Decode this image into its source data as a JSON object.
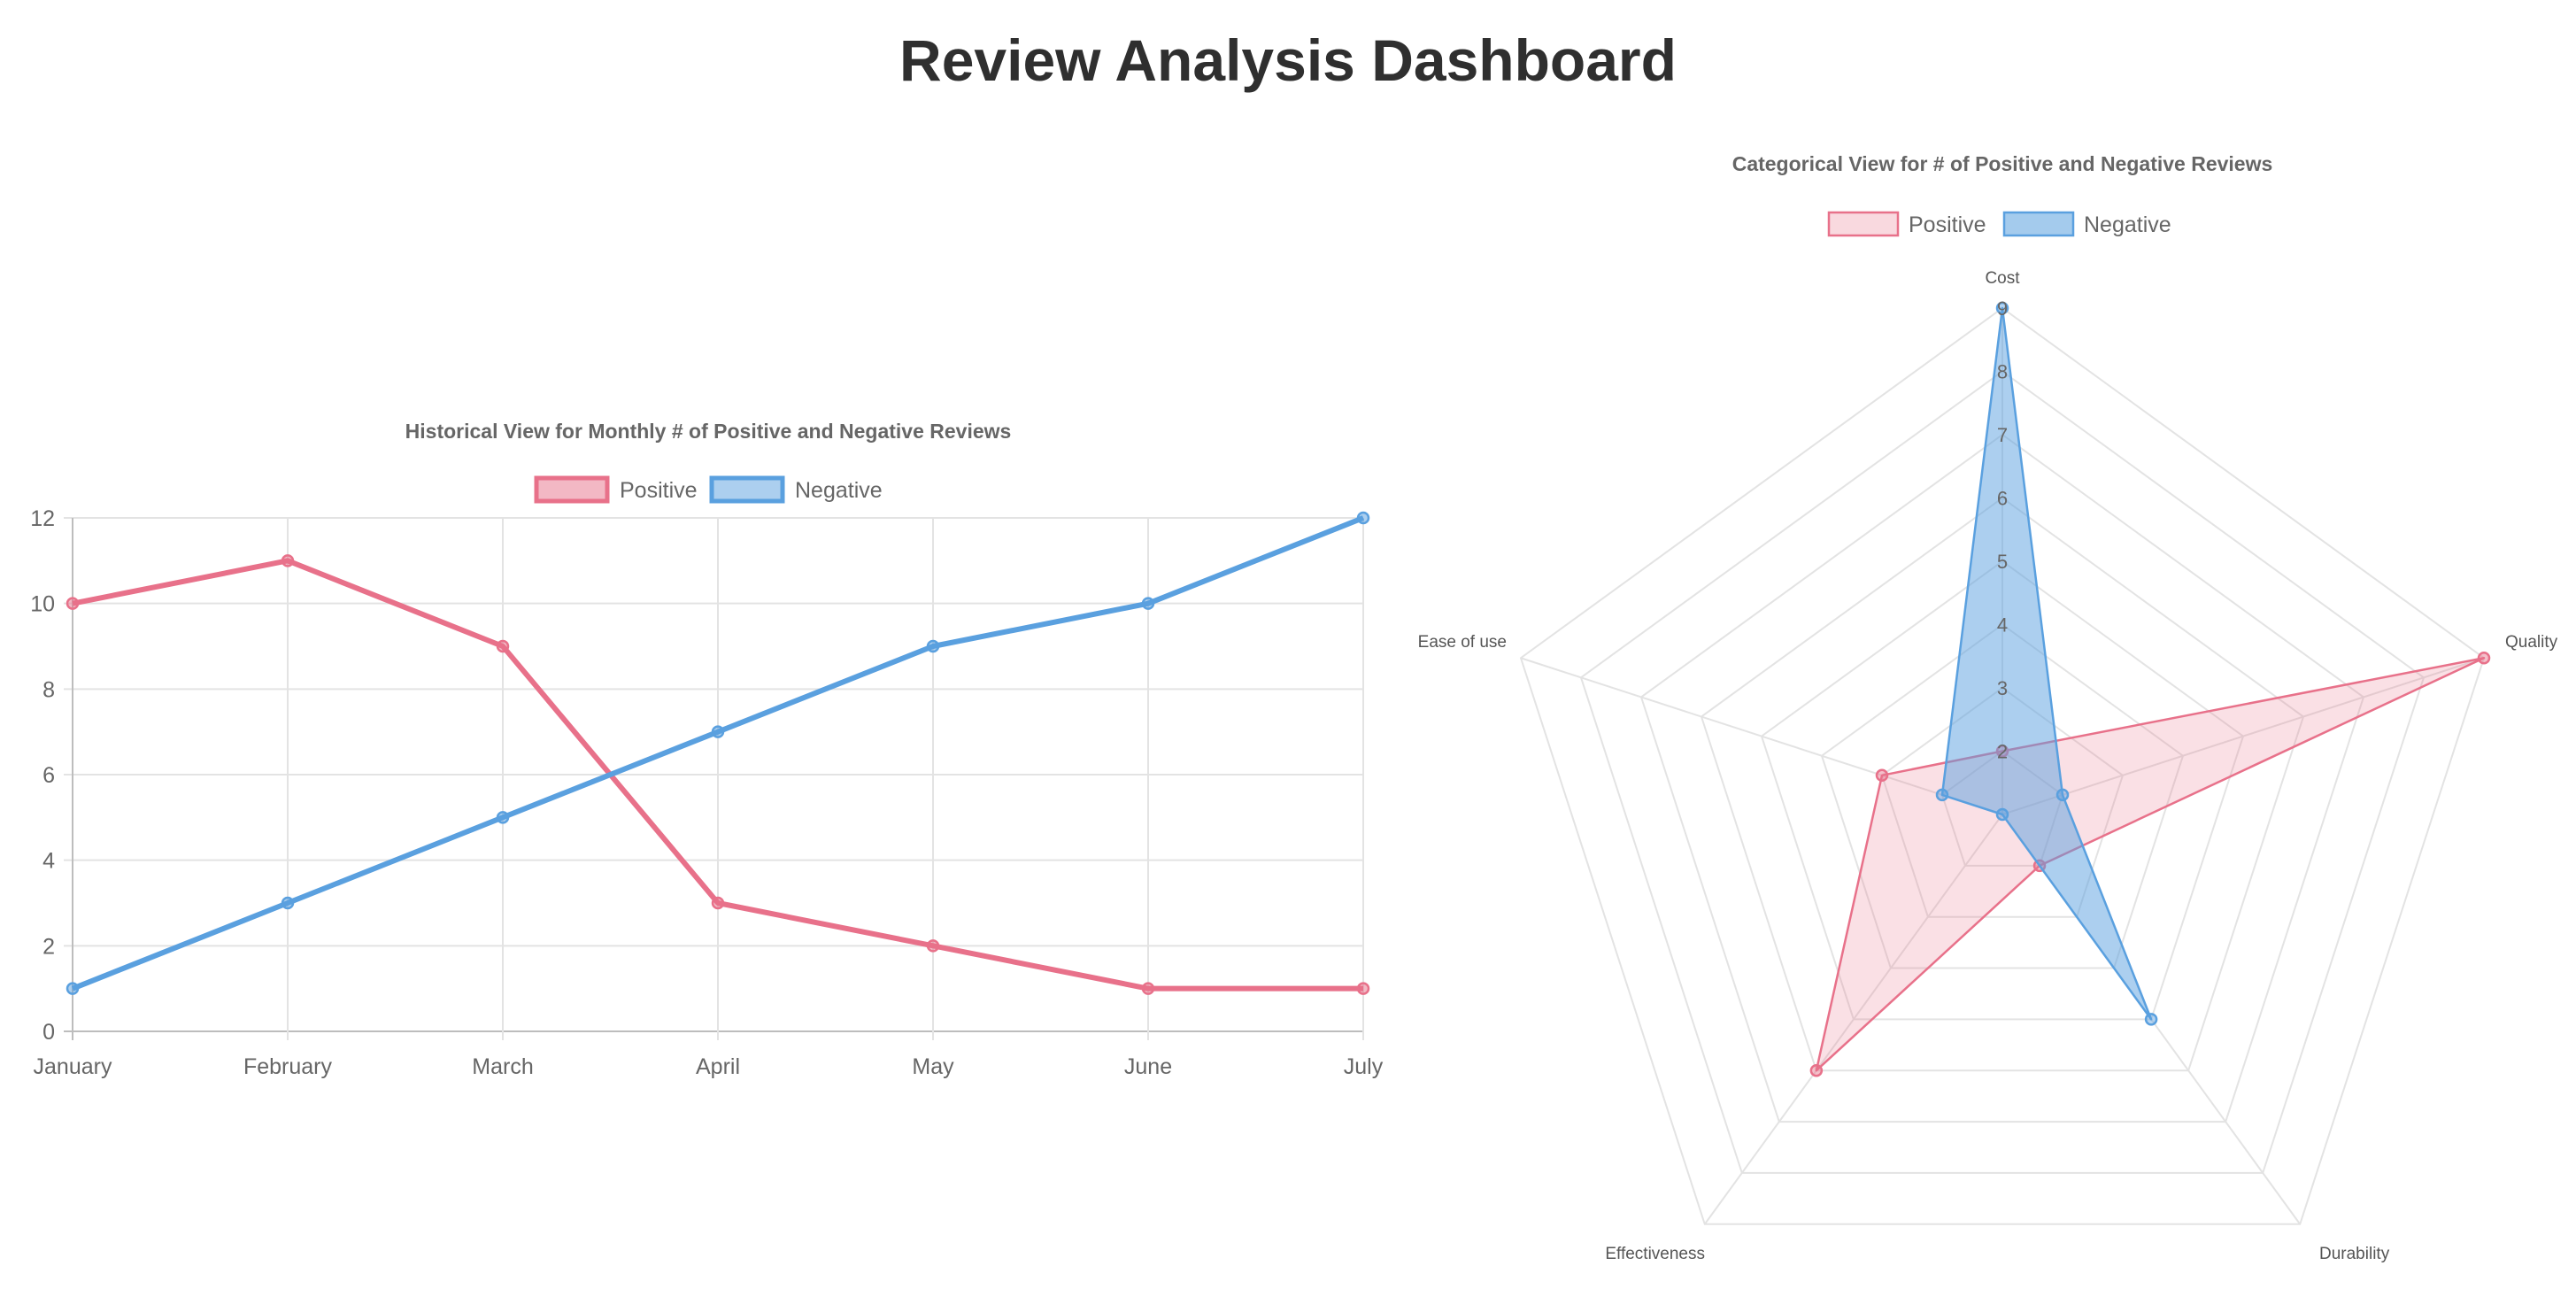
{
  "page": {
    "title": "Review Analysis Dashboard"
  },
  "colors": {
    "positive": "#e8718a",
    "negative": "#5aa0df",
    "grid": "#e3e3e3"
  },
  "chart_data": [
    {
      "type": "line",
      "title": "Historical View for Monthly # of Positive and Negative Reviews",
      "categories": [
        "January",
        "February",
        "March",
        "April",
        "May",
        "June",
        "July"
      ],
      "series": [
        {
          "name": "Positive",
          "values": [
            10,
            11,
            9,
            3,
            2,
            1,
            1
          ]
        },
        {
          "name": "Negative",
          "values": [
            1,
            3,
            5,
            7,
            9,
            10,
            12
          ]
        }
      ],
      "ylim": [
        0,
        12
      ],
      "yticks": [
        "0",
        "2",
        "4",
        "6",
        "8",
        "10",
        "12"
      ],
      "grid": true,
      "legend": "top-center"
    },
    {
      "type": "radar",
      "title": "Categorical View for # of Positive and Negative Reviews",
      "categories": [
        "Cost",
        "Quality",
        "Durability",
        "Effectiveness",
        "Ease of use"
      ],
      "series": [
        {
          "name": "Positive",
          "values": [
            2,
            9,
            2,
            6,
            3
          ]
        },
        {
          "name": "Negative",
          "values": [
            9,
            2,
            5,
            1,
            2
          ]
        }
      ],
      "rlim": [
        1,
        9
      ],
      "rticks": [
        "1",
        "2",
        "3",
        "4",
        "5",
        "6",
        "7",
        "8",
        "9"
      ],
      "grid": true,
      "legend": "top-center"
    }
  ]
}
